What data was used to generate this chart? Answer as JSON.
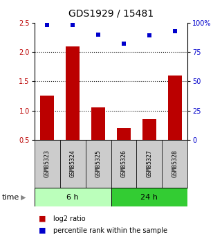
{
  "title": "GDS1929 / 15481",
  "samples": [
    "GSM85323",
    "GSM85324",
    "GSM85325",
    "GSM85326",
    "GSM85327",
    "GSM85328"
  ],
  "log2_ratio": [
    1.25,
    2.1,
    1.05,
    0.7,
    0.85,
    1.6
  ],
  "percentile_rank": [
    98,
    98,
    90,
    82,
    89,
    93
  ],
  "bar_color": "#bb0000",
  "scatter_color": "#0000cc",
  "ylim_left": [
    0.5,
    2.5
  ],
  "ylim_right": [
    0,
    100
  ],
  "yticks_left": [
    0.5,
    1.0,
    1.5,
    2.0,
    2.5
  ],
  "yticks_right": [
    0,
    25,
    50,
    75,
    100
  ],
  "ytick_labels_right": [
    "0",
    "25",
    "50",
    "75",
    "100%"
  ],
  "group1_label": "6 h",
  "group2_label": "24 h",
  "group1_color": "#bbffbb",
  "group2_color": "#33cc33",
  "label_area_color": "#cccccc",
  "time_label": "time",
  "legend_bar_label": "log2 ratio",
  "legend_scatter_label": "percentile rank within the sample",
  "title_fontsize": 10,
  "tick_fontsize": 7,
  "sample_fontsize": 6,
  "group_fontsize": 8,
  "dotted_yticks": [
    1.0,
    1.5,
    2.0
  ]
}
